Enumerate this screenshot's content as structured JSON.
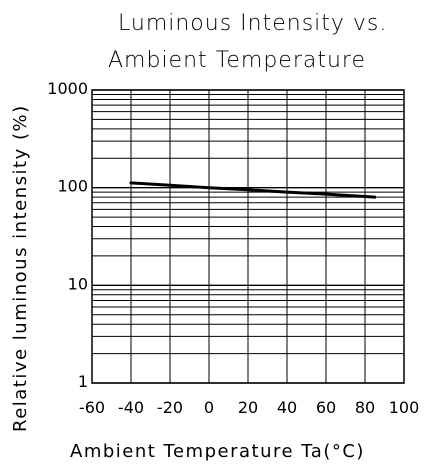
{
  "chart_data": {
    "type": "line",
    "title_lines": [
      "Luminous Intensity vs.",
      "Ambient Temperature"
    ],
    "xlabel": "Ambient Temperature Ta(°C)",
    "ylabel": "Relative luminous intensity (%)",
    "xlim": [
      -60,
      100
    ],
    "ylim": [
      1,
      1000
    ],
    "yscale": "log",
    "grid": true,
    "x_tick_labels": [
      "-60",
      "-40",
      "-20",
      "0",
      "20",
      "40",
      "60",
      "80",
      "100"
    ],
    "y_tick_labels": [
      "1",
      "10",
      "100",
      "1000"
    ],
    "series": [
      {
        "x": [
          -40,
          -20,
          0,
          20,
          40,
          60,
          85
        ],
        "y": [
          112,
          106,
          100,
          95,
          90,
          86,
          80
        ]
      }
    ],
    "line_color": "#000000",
    "grid_color": "#000000"
  }
}
